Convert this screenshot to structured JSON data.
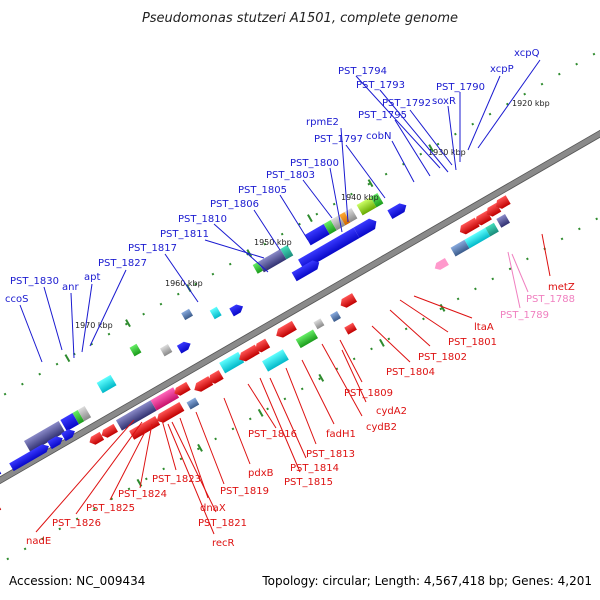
{
  "title": "Pseudomonas stutzeri A1501, complete genome",
  "footer": {
    "accession": "Accession: NC_009434",
    "topology": "Topology: circular; Length: 4,567,418 bp; Genes: 4,201"
  },
  "colors": {
    "forward_label": "#1a1ad0",
    "reverse_label": "#dd1111",
    "pink_label": "#f080c0",
    "backbone": "#808080",
    "tick": "#2e8b2e"
  },
  "kbp_markers": [
    "1920 kbp",
    "1930 kbp",
    "1940 kbp",
    "1950 kbp",
    "1960 kbp",
    "1970 kbp"
  ],
  "forward_genes": [
    "ccoS",
    "PST_1830",
    "anr",
    "apt",
    "PST_1827",
    "PST_1817",
    "PST_1811",
    "PST_1810",
    "PST_1806",
    "PST_1805",
    "PST_1803",
    "PST_1800",
    "PST_1797",
    "rpmE2",
    "cobN",
    "PST_1795",
    "PST_1794",
    "PST_1793",
    "PST_1792",
    "soxR",
    "PST_1790",
    "xcpP",
    "xcpQ"
  ],
  "reverse_genes": [
    "nadE",
    "PST_1826",
    "PST_1825",
    "PST_1824",
    "PST_1823",
    "PST_1821",
    "recR",
    "dnaX",
    "PST_1819",
    "pdxB",
    "PST_1816",
    "PST_1815",
    "PST_1814",
    "PST_1813",
    "fadH1",
    "cydB2",
    "cydA2",
    "PST_1809",
    "PST_1804",
    "PST_1802",
    "PST_1801",
    "ltaA",
    "metZ"
  ],
  "pink_genes": [
    "PST_1789",
    "PST_1788"
  ]
}
